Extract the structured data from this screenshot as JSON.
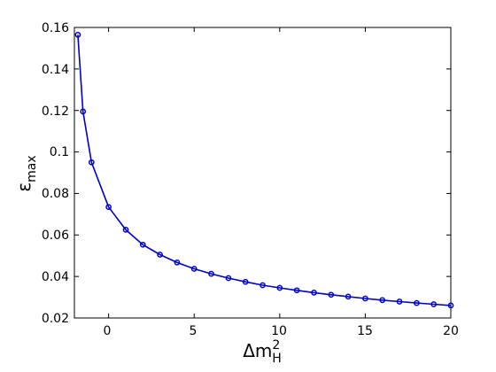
{
  "chart_data": {
    "type": "line",
    "title": "",
    "xlabel": {
      "base": "Δm",
      "sup": "2",
      "sub": "H"
    },
    "ylabel": {
      "base": "ε",
      "sub": "max"
    },
    "xlim": [
      -2,
      20
    ],
    "ylim": [
      0.02,
      0.16
    ],
    "xticks": [
      0,
      5,
      10,
      15,
      20
    ],
    "yticks": [
      0.02,
      0.04,
      0.06,
      0.08,
      0.1,
      0.12,
      0.14,
      0.16
    ],
    "xtick_labels": [
      "0",
      "5",
      "10",
      "15",
      "20"
    ],
    "ytick_labels": [
      "0.02",
      "0.04",
      "0.06",
      "0.08",
      "0.1",
      "0.12",
      "0.14",
      "0.16"
    ],
    "grid": false,
    "legend": "none",
    "series": [
      {
        "color": "#0000cc",
        "marker": "circle",
        "x": [
          -1.8,
          -1.5,
          -1.0,
          0,
          1,
          2,
          3,
          4,
          5,
          6,
          7,
          8,
          9,
          10,
          11,
          12,
          13,
          14,
          15,
          16,
          17,
          18,
          19,
          20
        ],
        "y": [
          0.1565,
          0.1195,
          0.095,
          0.0735,
          0.0625,
          0.0553,
          0.0505,
          0.0467,
          0.0437,
          0.0413,
          0.0392,
          0.0374,
          0.0358,
          0.0345,
          0.0333,
          0.0322,
          0.0312,
          0.0303,
          0.0294,
          0.0286,
          0.0279,
          0.0272,
          0.0266,
          0.026
        ]
      }
    ]
  }
}
